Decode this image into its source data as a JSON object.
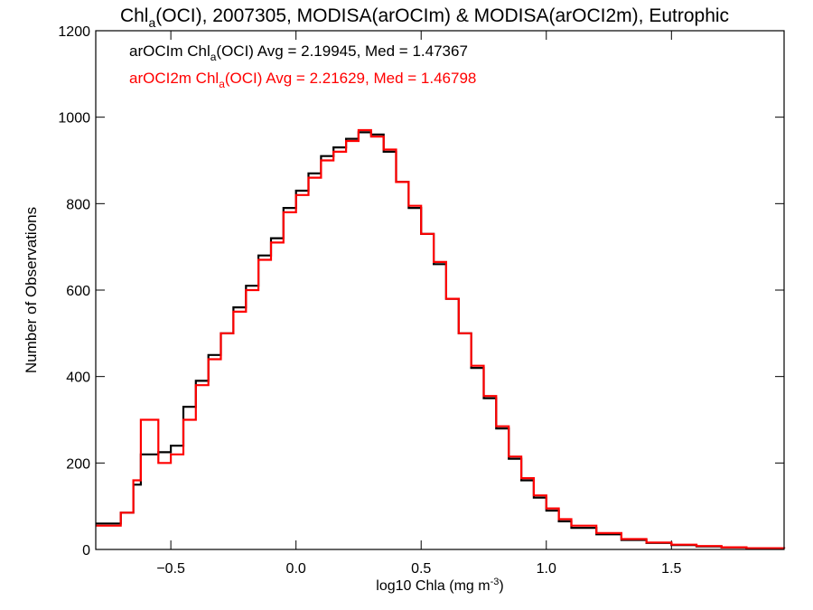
{
  "chart_data": {
    "type": "line",
    "title_parts": {
      "lead": "Chl",
      "sub": "a",
      "rest": "(OCI), 2007305, MODISA(arOCIm) & MODISA(arOCI2m), Eutrophic"
    },
    "xlabel": {
      "text": "log10 Chla (mg m",
      "sup": "-3",
      "close": ")"
    },
    "ylabel": "Number of Observations",
    "xlim": [
      -0.8,
      1.95
    ],
    "ylim": [
      0,
      1200
    ],
    "xticks": [
      -0.5,
      0.0,
      0.5,
      1.0,
      1.5
    ],
    "xtick_labels": [
      "−0.5",
      "0.0",
      "0.5",
      "1.0",
      "1.5"
    ],
    "yticks": [
      0,
      200,
      400,
      600,
      800,
      1000,
      1200
    ],
    "ytick_labels": [
      "0",
      "200",
      "400",
      "600",
      "800",
      "1000",
      "1200"
    ],
    "legend_placement": "top-left",
    "annotations": [
      {
        "lead": "arOCIm Chl",
        "sub": "a",
        "rest": "(OCI) Avg = 2.19945, Med = 1.47367",
        "color": "#000000"
      },
      {
        "lead": "arOCI2m Chl",
        "sub": "a",
        "rest": "(OCI) Avg = 2.21629, Med = 1.46798",
        "color": "#ff0000"
      }
    ],
    "x": [
      -0.8,
      -0.7,
      -0.65,
      -0.62,
      -0.55,
      -0.5,
      -0.45,
      -0.4,
      -0.35,
      -0.3,
      -0.25,
      -0.2,
      -0.15,
      -0.1,
      -0.05,
      0.0,
      0.05,
      0.1,
      0.15,
      0.2,
      0.25,
      0.3,
      0.35,
      0.4,
      0.45,
      0.5,
      0.55,
      0.6,
      0.65,
      0.7,
      0.75,
      0.8,
      0.85,
      0.9,
      0.95,
      1.0,
      1.05,
      1.1,
      1.2,
      1.3,
      1.4,
      1.5,
      1.6,
      1.7,
      1.8,
      1.95
    ],
    "series": [
      {
        "color": "#000000",
        "values": [
          60,
          85,
          150,
          220,
          225,
          240,
          330,
          390,
          450,
          500,
          560,
          610,
          680,
          720,
          790,
          830,
          870,
          910,
          930,
          950,
          965,
          960,
          920,
          850,
          790,
          730,
          660,
          580,
          500,
          420,
          350,
          280,
          210,
          160,
          120,
          90,
          65,
          50,
          35,
          22,
          15,
          10,
          7,
          5,
          3,
          2
        ]
      },
      {
        "color": "#ff0000",
        "values": [
          55,
          85,
          160,
          300,
          200,
          220,
          300,
          380,
          440,
          500,
          550,
          600,
          670,
          710,
          780,
          820,
          860,
          900,
          920,
          945,
          970,
          955,
          925,
          850,
          795,
          730,
          665,
          580,
          500,
          425,
          355,
          285,
          215,
          165,
          125,
          95,
          70,
          55,
          38,
          24,
          16,
          11,
          8,
          5,
          3,
          2
        ]
      }
    ]
  }
}
